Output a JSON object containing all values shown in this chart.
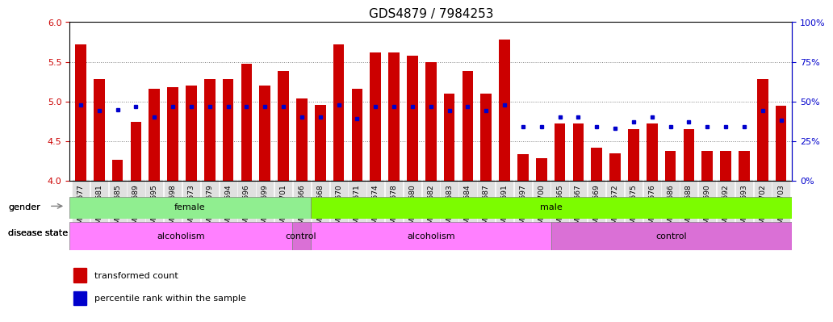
{
  "title": "GDS4879 / 7984253",
  "samples": [
    "GSM1085677",
    "GSM1085681",
    "GSM1085685",
    "GSM1085689",
    "GSM1085695",
    "GSM1085698",
    "GSM1085673",
    "GSM1085679",
    "GSM1085694",
    "GSM1085696",
    "GSM1085699",
    "GSM1085701",
    "GSM1085666",
    "GSM1085668",
    "GSM1085670",
    "GSM1085671",
    "GSM1085674",
    "GSM1085678",
    "GSM1085680",
    "GSM1085682",
    "GSM1085683",
    "GSM1085684",
    "GSM1085687",
    "GSM1085691",
    "GSM1085697",
    "GSM1085700",
    "GSM1085665",
    "GSM1085667",
    "GSM1085669",
    "GSM1085672",
    "GSM1085675",
    "GSM1085676",
    "GSM1085686",
    "GSM1085688",
    "GSM1085690",
    "GSM1085692",
    "GSM1085693",
    "GSM1085702",
    "GSM1085703"
  ],
  "bar_heights": [
    5.72,
    5.28,
    4.26,
    4.74,
    5.16,
    5.18,
    5.2,
    5.28,
    5.28,
    5.48,
    5.2,
    5.38,
    5.04,
    4.96,
    5.72,
    5.16,
    5.62,
    5.62,
    5.58,
    5.5,
    5.1,
    5.38,
    5.1,
    5.78,
    4.34,
    4.28,
    4.72,
    4.72,
    4.42,
    4.35,
    4.65,
    4.72,
    4.38,
    4.65,
    4.38,
    4.38,
    4.38,
    5.28,
    4.95
  ],
  "percentile_ranks": [
    48,
    44,
    45,
    47,
    40,
    47,
    47,
    47,
    47,
    47,
    47,
    47,
    40,
    40,
    48,
    39,
    47,
    47,
    47,
    47,
    44,
    47,
    44,
    48,
    34,
    34,
    40,
    40,
    34,
    33,
    37,
    40,
    34,
    37,
    34,
    34,
    34,
    44,
    38
  ],
  "gender": [
    "female",
    "female",
    "female",
    "female",
    "female",
    "female",
    "female",
    "female",
    "female",
    "female",
    "female",
    "female",
    "female",
    "male",
    "male",
    "male",
    "male",
    "male",
    "male",
    "male",
    "male",
    "male",
    "male",
    "male",
    "male",
    "male",
    "male",
    "male",
    "male",
    "male",
    "male",
    "male",
    "male",
    "male",
    "male",
    "male",
    "male",
    "male",
    "male"
  ],
  "disease": [
    "alcoholism",
    "alcoholism",
    "alcoholism",
    "alcoholism",
    "alcoholism",
    "alcoholism",
    "alcoholism",
    "alcoholism",
    "alcoholism",
    "alcoholism",
    "alcoholism",
    "alcoholism",
    "control",
    "alcoholism",
    "alcoholism",
    "alcoholism",
    "alcoholism",
    "alcoholism",
    "alcoholism",
    "alcoholism",
    "alcoholism",
    "alcoholism",
    "alcoholism",
    "alcoholism",
    "alcoholism",
    "alcoholism",
    "control",
    "control",
    "control",
    "control",
    "control",
    "control",
    "control",
    "control",
    "control",
    "control",
    "control",
    "control",
    "control"
  ],
  "ymin": 4.0,
  "ymax": 6.0,
  "bar_color": "#cc0000",
  "dot_color": "#0000cc",
  "female_color": "#90EE90",
  "male_color": "#7CFC00",
  "alcoholism_color": "#FF80FF",
  "control_color": "#DA70D6",
  "left_axis_color": "#cc0000",
  "right_axis_color": "#0000cc"
}
